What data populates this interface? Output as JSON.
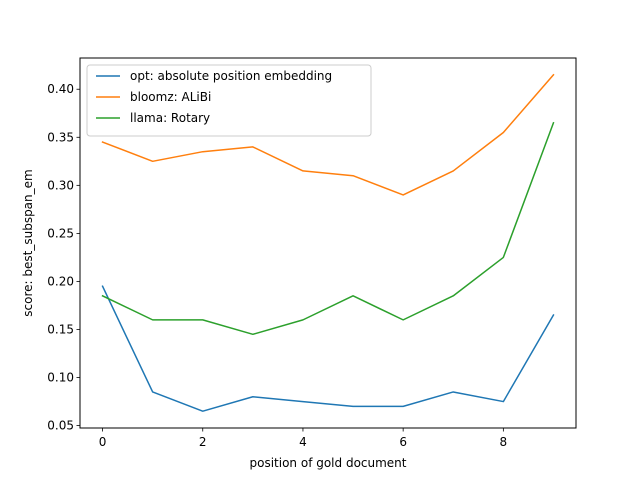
{
  "chart_data": {
    "type": "line",
    "title": "",
    "xlabel": "position of gold document",
    "ylabel": "score: best_subspan_em",
    "x": [
      0,
      1,
      2,
      3,
      4,
      5,
      6,
      7,
      8,
      9
    ],
    "xlim": [
      -0.45,
      9.45
    ],
    "ylim": [
      0.0475,
      0.4325
    ],
    "xticks": [
      0,
      2,
      4,
      6,
      8
    ],
    "yticks": [
      0.05,
      0.1,
      0.15,
      0.2,
      0.25,
      0.3,
      0.35,
      0.4
    ],
    "ytick_labels": [
      "0.05",
      "0.10",
      "0.15",
      "0.20",
      "0.25",
      "0.30",
      "0.35",
      "0.40"
    ],
    "grid": false,
    "legend_position": "top-left",
    "series": [
      {
        "name": "opt: absolute position embedding",
        "color": "#1f77b4",
        "values": [
          0.195,
          0.085,
          0.065,
          0.08,
          0.075,
          0.07,
          0.07,
          0.085,
          0.075,
          0.165
        ]
      },
      {
        "name": "bloomz: ALiBi",
        "color": "#ff7f0e",
        "values": [
          0.345,
          0.325,
          0.335,
          0.34,
          0.315,
          0.31,
          0.29,
          0.315,
          0.355,
          0.415
        ]
      },
      {
        "name": "llama: Rotary",
        "color": "#2ca02c",
        "values": [
          0.185,
          0.16,
          0.16,
          0.145,
          0.16,
          0.185,
          0.16,
          0.185,
          0.225,
          0.365
        ]
      }
    ]
  }
}
